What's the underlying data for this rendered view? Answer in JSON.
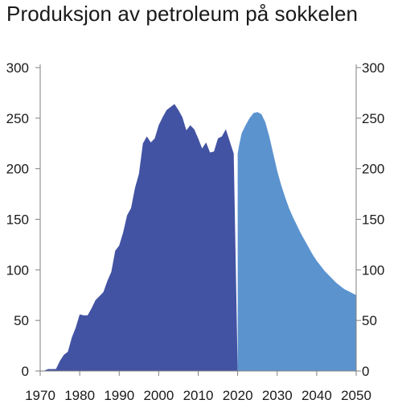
{
  "chart_data": {
    "type": "area",
    "title": "Produksjon av petroleum på sokkelen",
    "xlabel": "",
    "ylabel": "",
    "xlim": [
      1970,
      2050
    ],
    "ylim": [
      0,
      300
    ],
    "x_ticks": [
      "1970",
      "1980",
      "1990",
      "2000",
      "2010",
      "2020",
      "2030",
      "2040",
      "2050"
    ],
    "y_ticks": [
      "0",
      "50",
      "100",
      "150",
      "200",
      "250",
      "300"
    ],
    "grid": false,
    "legend": "none",
    "series": [
      {
        "color": "#4353a3",
        "x": [
          1971,
          1972,
          1973,
          1974,
          1975,
          1976,
          1977,
          1978,
          1979,
          1980,
          1981,
          1982,
          1983,
          1984,
          1985,
          1986,
          1987,
          1988,
          1989,
          1990,
          1991,
          1992,
          1993,
          1994,
          1995,
          1996,
          1997,
          1998,
          1999,
          2000,
          2001,
          2002,
          2003,
          2004,
          2005,
          2006,
          2007,
          2008,
          2009,
          2010,
          2011,
          2012,
          2013,
          2014,
          2015,
          2016,
          2017,
          2018,
          2019,
          2020
        ],
        "values": [
          0.3,
          1.9,
          1.9,
          2.0,
          10.0,
          16.0,
          19.0,
          33.0,
          43.0,
          56.0,
          55.0,
          55.0,
          62.0,
          70.0,
          74.0,
          78.0,
          89.0,
          98.0,
          119.0,
          124.0,
          137.0,
          154.0,
          161.0,
          181.0,
          195.0,
          225.0,
          232.0,
          226.0,
          230.0,
          243.0,
          251.0,
          258.0,
          261.0,
          264.0,
          258.0,
          251.0,
          238.0,
          243.0,
          239.0,
          230.0,
          220.0,
          226.0,
          216.0,
          217.0,
          230.0,
          232.0,
          239.0,
          227.0,
          215.0,
          0.0
        ]
      },
      {
        "color": "#5b93cf",
        "x": [
          2020,
          2020.3,
          2021,
          2022,
          2023,
          2024,
          2025,
          2026,
          2027,
          2028,
          2029,
          2030,
          2031,
          2032,
          2033,
          2034,
          2035,
          2036,
          2037,
          2038,
          2039,
          2040,
          2041,
          2042,
          2043,
          2044,
          2045,
          2046,
          2047,
          2048,
          2049,
          2050
        ],
        "values": [
          215.0,
          222.0,
          235.0,
          243.0,
          250.0,
          255.0,
          256.0,
          254.0,
          246.0,
          232.0,
          215.0,
          198.0,
          184.0,
          172.0,
          161.0,
          152.0,
          144.0,
          136.0,
          129.0,
          122.0,
          115.0,
          109.0,
          104.0,
          99.0,
          95.0,
          91.0,
          87.0,
          84.0,
          81.0,
          79.0,
          77.0,
          75.0
        ]
      }
    ]
  }
}
